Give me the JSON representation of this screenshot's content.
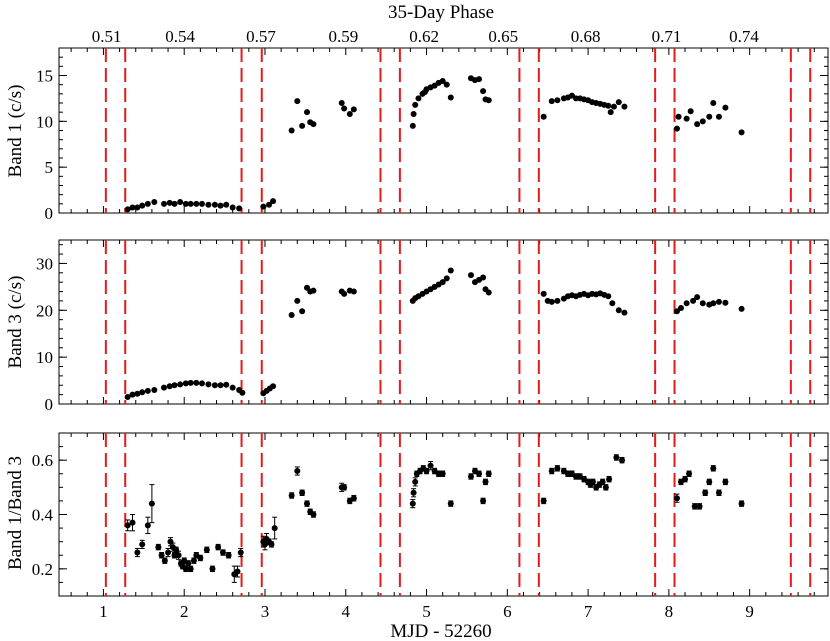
{
  "chart_data": {
    "type": "scatter",
    "top_axis": {
      "title": "35-Day Phase",
      "ticks": [
        {
          "x": 1.04,
          "label": "0.51"
        },
        {
          "x": 1.95,
          "label": "0.54"
        },
        {
          "x": 2.95,
          "label": "0.57"
        },
        {
          "x": 3.97,
          "label": "0.59"
        },
        {
          "x": 4.97,
          "label": "0.62"
        },
        {
          "x": 5.95,
          "label": "0.65"
        },
        {
          "x": 6.97,
          "label": "0.68"
        },
        {
          "x": 7.97,
          "label": "0.71"
        },
        {
          "x": 8.93,
          "label": "0.74"
        }
      ]
    },
    "x_axis": {
      "label": "MJD - 52260",
      "range": [
        0.45,
        9.97
      ],
      "ticks": [
        1,
        2,
        3,
        4,
        5,
        6,
        7,
        8,
        9
      ]
    },
    "vertical_lines": [
      1.03,
      1.27,
      2.71,
      2.96,
      4.43,
      4.67,
      6.15,
      6.39,
      7.83,
      8.07,
      9.51,
      9.75
    ],
    "panels": [
      {
        "ylabel": "Band 1 (c/s)",
        "ylim": [
          0,
          18
        ],
        "yticks": [
          0,
          5,
          10,
          15
        ],
        "minor_step": 1,
        "points": [
          [
            1.3,
            0.4
          ],
          [
            1.36,
            0.6
          ],
          [
            1.42,
            0.6
          ],
          [
            1.48,
            0.8
          ],
          [
            1.55,
            1.0
          ],
          [
            1.63,
            1.2
          ],
          [
            1.75,
            1.0
          ],
          [
            1.82,
            1.1
          ],
          [
            1.88,
            1.0
          ],
          [
            1.95,
            1.2
          ],
          [
            2.02,
            1.0
          ],
          [
            2.08,
            1.0
          ],
          [
            2.15,
            1.0
          ],
          [
            2.22,
            1.0
          ],
          [
            2.3,
            0.9
          ],
          [
            2.38,
            0.9
          ],
          [
            2.45,
            0.8
          ],
          [
            2.52,
            0.9
          ],
          [
            2.6,
            0.6
          ],
          [
            2.68,
            0.5
          ],
          [
            2.98,
            0.7
          ],
          [
            3.05,
            0.9
          ],
          [
            3.1,
            1.3
          ],
          [
            3.33,
            9.0
          ],
          [
            3.4,
            12.2
          ],
          [
            3.46,
            9.5
          ],
          [
            3.52,
            11.0
          ],
          [
            3.56,
            9.9
          ],
          [
            3.6,
            9.7
          ],
          [
            3.95,
            12.0
          ],
          [
            3.98,
            11.4
          ],
          [
            4.05,
            10.8
          ],
          [
            4.1,
            11.3
          ],
          [
            4.83,
            9.5
          ],
          [
            4.84,
            10.8
          ],
          [
            4.86,
            11.8
          ],
          [
            4.9,
            12.5
          ],
          [
            4.95,
            13.0
          ],
          [
            4.98,
            13.2
          ],
          [
            5.0,
            13.5
          ],
          [
            5.05,
            13.7
          ],
          [
            5.1,
            13.9
          ],
          [
            5.15,
            14.2
          ],
          [
            5.2,
            14.4
          ],
          [
            5.25,
            14.0
          ],
          [
            5.3,
            12.6
          ],
          [
            5.55,
            14.7
          ],
          [
            5.6,
            14.5
          ],
          [
            5.65,
            14.6
          ],
          [
            5.7,
            13.3
          ],
          [
            5.73,
            12.4
          ],
          [
            5.77,
            12.3
          ],
          [
            6.45,
            10.5
          ],
          [
            6.55,
            12.2
          ],
          [
            6.62,
            12.3
          ],
          [
            6.7,
            12.5
          ],
          [
            6.75,
            12.6
          ],
          [
            6.8,
            12.8
          ],
          [
            6.85,
            12.5
          ],
          [
            6.9,
            12.5
          ],
          [
            6.95,
            12.4
          ],
          [
            7.0,
            12.3
          ],
          [
            7.05,
            12.1
          ],
          [
            7.1,
            12.0
          ],
          [
            7.15,
            11.9
          ],
          [
            7.2,
            11.8
          ],
          [
            7.25,
            11.7
          ],
          [
            7.28,
            11.0
          ],
          [
            7.32,
            11.6
          ],
          [
            7.38,
            12.1
          ],
          [
            7.45,
            11.6
          ],
          [
            8.1,
            9.2
          ],
          [
            8.12,
            10.5
          ],
          [
            8.22,
            10.3
          ],
          [
            8.27,
            11.1
          ],
          [
            8.35,
            9.7
          ],
          [
            8.42,
            10.0
          ],
          [
            8.5,
            10.5
          ],
          [
            8.55,
            12.0
          ],
          [
            8.62,
            10.5
          ],
          [
            8.7,
            11.5
          ],
          [
            8.9,
            8.8
          ]
        ]
      },
      {
        "ylabel": "Band 3 (c/s)",
        "ylim": [
          0,
          35
        ],
        "yticks": [
          0,
          10,
          20,
          30
        ],
        "minor_step": 2,
        "points": [
          [
            1.3,
            1.5
          ],
          [
            1.36,
            2.0
          ],
          [
            1.42,
            2.2
          ],
          [
            1.48,
            2.5
          ],
          [
            1.55,
            2.8
          ],
          [
            1.63,
            3.0
          ],
          [
            1.75,
            3.5
          ],
          [
            1.82,
            3.8
          ],
          [
            1.88,
            4.0
          ],
          [
            1.95,
            4.2
          ],
          [
            2.02,
            4.4
          ],
          [
            2.08,
            4.5
          ],
          [
            2.15,
            4.5
          ],
          [
            2.22,
            4.4
          ],
          [
            2.3,
            4.2
          ],
          [
            2.38,
            4.0
          ],
          [
            2.45,
            4.0
          ],
          [
            2.52,
            4.1
          ],
          [
            2.6,
            3.5
          ],
          [
            2.68,
            3.0
          ],
          [
            2.72,
            2.4
          ],
          [
            2.98,
            2.3
          ],
          [
            3.02,
            2.8
          ],
          [
            3.06,
            3.3
          ],
          [
            3.1,
            3.8
          ],
          [
            3.33,
            19.0
          ],
          [
            3.4,
            22.0
          ],
          [
            3.46,
            19.8
          ],
          [
            3.52,
            24.8
          ],
          [
            3.56,
            24.0
          ],
          [
            3.6,
            24.2
          ],
          [
            3.95,
            24.0
          ],
          [
            3.98,
            23.5
          ],
          [
            4.05,
            24.2
          ],
          [
            4.1,
            24.0
          ],
          [
            4.83,
            22.0
          ],
          [
            4.86,
            22.6
          ],
          [
            4.9,
            23.0
          ],
          [
            4.95,
            23.5
          ],
          [
            5.0,
            24.0
          ],
          [
            5.05,
            24.5
          ],
          [
            5.1,
            25.0
          ],
          [
            5.15,
            25.5
          ],
          [
            5.2,
            26.0
          ],
          [
            5.25,
            26.8
          ],
          [
            5.3,
            28.5
          ],
          [
            5.55,
            27.5
          ],
          [
            5.6,
            26.0
          ],
          [
            5.65,
            26.5
          ],
          [
            5.7,
            27.0
          ],
          [
            5.73,
            24.5
          ],
          [
            5.77,
            23.8
          ],
          [
            6.45,
            23.5
          ],
          [
            6.5,
            22.0
          ],
          [
            6.55,
            21.8
          ],
          [
            6.62,
            22.0
          ],
          [
            6.7,
            22.5
          ],
          [
            6.75,
            23.0
          ],
          [
            6.8,
            23.2
          ],
          [
            6.85,
            23.0
          ],
          [
            6.9,
            23.3
          ],
          [
            6.95,
            23.5
          ],
          [
            7.0,
            23.2
          ],
          [
            7.05,
            23.5
          ],
          [
            7.1,
            23.4
          ],
          [
            7.15,
            23.6
          ],
          [
            7.2,
            23.3
          ],
          [
            7.25,
            23.0
          ],
          [
            7.3,
            21.5
          ],
          [
            7.38,
            20.0
          ],
          [
            7.45,
            19.5
          ],
          [
            8.1,
            19.8
          ],
          [
            8.15,
            20.5
          ],
          [
            8.22,
            21.5
          ],
          [
            8.3,
            22.0
          ],
          [
            8.35,
            22.8
          ],
          [
            8.42,
            21.5
          ],
          [
            8.5,
            21.2
          ],
          [
            8.55,
            21.5
          ],
          [
            8.62,
            21.8
          ],
          [
            8.7,
            21.6
          ],
          [
            8.9,
            20.3
          ]
        ]
      },
      {
        "ylabel": "Band 1/Band 3",
        "ylim": [
          0.1,
          0.7
        ],
        "yticks": [
          0.2,
          0.4,
          0.6
        ],
        "minor_step": 0.05,
        "points": [
          [
            1.3,
            0.36,
            0.02
          ],
          [
            1.36,
            0.37,
            0.03
          ],
          [
            1.42,
            0.26,
            0.015
          ],
          [
            1.48,
            0.29,
            0.015
          ],
          [
            1.55,
            0.36,
            0.03
          ],
          [
            1.6,
            0.44,
            0.07
          ],
          [
            1.68,
            0.28,
            0.01
          ],
          [
            1.72,
            0.25,
            0.01
          ],
          [
            1.76,
            0.23,
            0.01
          ],
          [
            1.8,
            0.26,
            0.015
          ],
          [
            1.83,
            0.3,
            0.015
          ],
          [
            1.86,
            0.28,
            0.015
          ],
          [
            1.88,
            0.25,
            0.01
          ],
          [
            1.9,
            0.27,
            0.01
          ],
          [
            1.93,
            0.25,
            0.015
          ],
          [
            1.96,
            0.22,
            0.01
          ],
          [
            1.98,
            0.21,
            0.01
          ],
          [
            2.0,
            0.23,
            0.01
          ],
          [
            2.02,
            0.2,
            0.01
          ],
          [
            2.05,
            0.22,
            0.01
          ],
          [
            2.08,
            0.2,
            0.01
          ],
          [
            2.12,
            0.23,
            0.01
          ],
          [
            2.15,
            0.25,
            0.01
          ],
          [
            2.2,
            0.24,
            0.01
          ],
          [
            2.28,
            0.27,
            0.01
          ],
          [
            2.35,
            0.2,
            0.01
          ],
          [
            2.42,
            0.28,
            0.01
          ],
          [
            2.48,
            0.26,
            0.01
          ],
          [
            2.55,
            0.25,
            0.01
          ],
          [
            2.62,
            0.18,
            0.03
          ],
          [
            2.66,
            0.19,
            0.02
          ],
          [
            2.7,
            0.26,
            0.015
          ],
          [
            2.98,
            0.3,
            0.02
          ],
          [
            3.0,
            0.29,
            0.02
          ],
          [
            3.02,
            0.31,
            0.02
          ],
          [
            3.05,
            0.3,
            0.01
          ],
          [
            3.08,
            0.29,
            0.01
          ],
          [
            3.12,
            0.35,
            0.04
          ],
          [
            3.33,
            0.47,
            0.01
          ],
          [
            3.4,
            0.56,
            0.015
          ],
          [
            3.46,
            0.48,
            0.01
          ],
          [
            3.52,
            0.44,
            0.01
          ],
          [
            3.56,
            0.41,
            0.01
          ],
          [
            3.6,
            0.4,
            0.01
          ],
          [
            3.95,
            0.5,
            0.015
          ],
          [
            3.98,
            0.5,
            0.01
          ],
          [
            4.05,
            0.45,
            0.01
          ],
          [
            4.1,
            0.46,
            0.01
          ],
          [
            4.83,
            0.44,
            0.015
          ],
          [
            4.84,
            0.48,
            0.015
          ],
          [
            4.86,
            0.52,
            0.015
          ],
          [
            4.88,
            0.55,
            0.01
          ],
          [
            4.92,
            0.56,
            0.01
          ],
          [
            4.96,
            0.57,
            0.01
          ],
          [
            5.0,
            0.56,
            0.01
          ],
          [
            5.05,
            0.58,
            0.015
          ],
          [
            5.1,
            0.56,
            0.01
          ],
          [
            5.15,
            0.55,
            0.01
          ],
          [
            5.2,
            0.55,
            0.01
          ],
          [
            5.3,
            0.44,
            0.01
          ],
          [
            5.55,
            0.54,
            0.01
          ],
          [
            5.6,
            0.56,
            0.01
          ],
          [
            5.65,
            0.55,
            0.01
          ],
          [
            5.7,
            0.45,
            0.01
          ],
          [
            5.73,
            0.52,
            0.01
          ],
          [
            5.77,
            0.55,
            0.01
          ],
          [
            6.45,
            0.45,
            0.01
          ],
          [
            6.55,
            0.56,
            0.01
          ],
          [
            6.62,
            0.57,
            0.01
          ],
          [
            6.7,
            0.56,
            0.01
          ],
          [
            6.75,
            0.55,
            0.01
          ],
          [
            6.8,
            0.55,
            0.01
          ],
          [
            6.85,
            0.54,
            0.01
          ],
          [
            6.9,
            0.54,
            0.01
          ],
          [
            6.95,
            0.53,
            0.01
          ],
          [
            7.0,
            0.52,
            0.01
          ],
          [
            7.03,
            0.51,
            0.01
          ],
          [
            7.06,
            0.52,
            0.01
          ],
          [
            7.1,
            0.5,
            0.01
          ],
          [
            7.14,
            0.51,
            0.01
          ],
          [
            7.18,
            0.52,
            0.01
          ],
          [
            7.22,
            0.5,
            0.01
          ],
          [
            7.26,
            0.53,
            0.01
          ],
          [
            7.35,
            0.61,
            0.01
          ],
          [
            7.42,
            0.6,
            0.01
          ],
          [
            8.1,
            0.46,
            0.015
          ],
          [
            8.15,
            0.52,
            0.01
          ],
          [
            8.2,
            0.53,
            0.01
          ],
          [
            8.25,
            0.55,
            0.01
          ],
          [
            8.32,
            0.43,
            0.01
          ],
          [
            8.38,
            0.43,
            0.01
          ],
          [
            8.45,
            0.48,
            0.01
          ],
          [
            8.5,
            0.52,
            0.01
          ],
          [
            8.55,
            0.57,
            0.01
          ],
          [
            8.62,
            0.48,
            0.01
          ],
          [
            8.7,
            0.52,
            0.01
          ],
          [
            8.9,
            0.44,
            0.01
          ]
        ]
      }
    ]
  }
}
